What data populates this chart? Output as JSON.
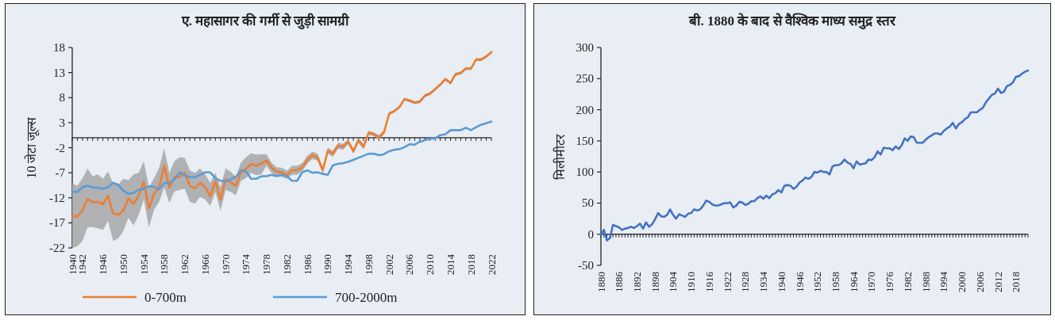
{
  "chart_data": [
    {
      "type": "line",
      "title": "ए. महासागर की गर्मी से जुड़ी सामग्री",
      "ylabel": "10 जेटा जूल्स",
      "categories": [
        "1940",
        null,
        "1942",
        null,
        null,
        null,
        "1946",
        null,
        null,
        null,
        "1950",
        null,
        null,
        null,
        "1954",
        null,
        null,
        null,
        "1958",
        null,
        null,
        null,
        "1962",
        null,
        null,
        null,
        "1966",
        null,
        null,
        null,
        "1970",
        null,
        null,
        null,
        "1974",
        null,
        null,
        null,
        "1978",
        null,
        null,
        null,
        "1982",
        null,
        null,
        null,
        "1986",
        null,
        null,
        null,
        "1990",
        null,
        null,
        null,
        "1994",
        null,
        null,
        null,
        "1998",
        null,
        null,
        null,
        "2002",
        null,
        null,
        null,
        "2006",
        null,
        null,
        null,
        "2010",
        null,
        null,
        null,
        "2014",
        null,
        null,
        null,
        "2018",
        null,
        null,
        null,
        "2022"
      ],
      "series": [
        {
          "name": "0-700m",
          "color": "#ed7d31",
          "values": [
            -15.7,
            -15.7,
            -14.5,
            -12.2,
            -12.9,
            -12.8,
            -13.3,
            -11.6,
            -15.1,
            -15.4,
            -14.5,
            -12.1,
            -13.2,
            -11.5,
            -8.8,
            -14.1,
            -11.2,
            -9.9,
            -5.6,
            -9.9,
            -7.8,
            -7.8,
            -7.0,
            -9.6,
            -10.1,
            -9.0,
            -9.9,
            -11.7,
            -8.7,
            -12.4,
            -8.3,
            -8.9,
            -9.6,
            -7.0,
            -6.2,
            -5.2,
            -5.6,
            -5.2,
            -4.5,
            -6.0,
            -6.8,
            -6.9,
            -7.4,
            -6.5,
            -6.5,
            -5.9,
            -4.4,
            -3.5,
            -3.9,
            -6.5,
            -2.6,
            -3.2,
            -1.6,
            -1.8,
            -0.8,
            -2.7,
            -0.5,
            -1.8,
            1.0,
            0.7,
            0.1,
            1.1,
            4.8,
            5.3,
            6.1,
            7.7,
            7.4,
            7.0,
            7.2,
            8.4,
            8.8,
            9.7,
            10.6,
            11.7,
            10.9,
            12.7,
            12.9,
            13.8,
            13.8,
            15.6,
            15.6,
            16.2,
            17.1
          ],
          "upper": [
            -9.1,
            -9.6,
            -8.1,
            -6.2,
            -7.7,
            -7.3,
            -8.2,
            -6.8,
            -9.1,
            -9.3,
            -8.2,
            -8.5,
            -7.3,
            -7.0,
            -4.7,
            -9.9,
            -8.1,
            -6.0,
            -2.1,
            -7.0,
            -4.7,
            -3.9,
            -4.0,
            -6.5,
            -7.0,
            -6.1,
            -7.3,
            -9.0,
            -7.0,
            -9.9,
            -6.1,
            -6.8,
            -7.8,
            -5.0,
            -3.9,
            -3.1,
            -3.4,
            -3.3,
            -3.3,
            -5.0,
            -5.9,
            -6.0,
            -6.6,
            -5.6,
            -5.6,
            -5.1,
            -3.6,
            -2.8,
            -3.2,
            -5.9,
            -2.0,
            -2.6,
            -1.0,
            -1.2,
            -0.3,
            -2.2,
            0.0,
            -1.3,
            1.4,
            1.1,
            0.5,
            1.5,
            5.1,
            5.6,
            6.4,
            8.0,
            7.7,
            7.3,
            7.5,
            8.7,
            9.1,
            10.0,
            10.9,
            12.0,
            11.2,
            13.0,
            13.2,
            14.1,
            14.1,
            15.9,
            15.9,
            16.5,
            17.4
          ],
          "lower": [
            -22.0,
            -21.7,
            -20.6,
            -17.9,
            -17.8,
            -18.1,
            -18.4,
            -16.6,
            -20.6,
            -20.1,
            -18.6,
            -16.0,
            -17.5,
            -15.4,
            -12.3,
            -17.9,
            -14.4,
            -12.8,
            -9.9,
            -13.0,
            -10.7,
            -10.4,
            -10.2,
            -12.8,
            -13.2,
            -11.8,
            -12.3,
            -13.6,
            -10.8,
            -14.6,
            -10.4,
            -10.8,
            -11.5,
            -8.6,
            -8.1,
            -7.0,
            -7.5,
            -7.3,
            -5.6,
            -7.0,
            -7.7,
            -7.8,
            -8.2,
            -7.4,
            -7.4,
            -6.7,
            -5.2,
            -4.2,
            -4.6,
            -7.1,
            -3.2,
            -3.8,
            -2.2,
            -2.4,
            -1.3,
            -3.2,
            -1.0,
            -2.3,
            0.6,
            0.3,
            -0.3,
            0.7,
            4.5,
            5.0,
            5.8,
            7.4,
            7.1,
            6.7,
            6.9,
            8.1,
            8.5,
            9.4,
            10.3,
            11.4,
            10.6,
            12.4,
            12.6,
            13.5,
            13.5,
            15.3,
            15.3,
            15.9,
            16.8
          ]
        },
        {
          "name": "700-2000m",
          "color": "#5b9bd5",
          "values": [
            -10.8,
            -10.8,
            -9.9,
            -9.6,
            -9.9,
            -10.0,
            -10.2,
            -9.9,
            -9.0,
            -9.4,
            -10.6,
            -11.2,
            -11.0,
            -10.4,
            -10.2,
            -9.7,
            -9.8,
            -10.3,
            -9.1,
            -9.0,
            -8.3,
            -6.9,
            -7.5,
            -7.9,
            -7.9,
            -7.4,
            -6.9,
            -6.9,
            -8.1,
            -8.6,
            -8.7,
            -8.3,
            -7.8,
            -6.5,
            -6.8,
            -8.2,
            -8.2,
            -7.7,
            -7.7,
            -7.4,
            -7.7,
            -7.4,
            -7.7,
            -8.6,
            -8.6,
            -6.9,
            -6.5,
            -7.0,
            -6.9,
            -7.2,
            -7.4,
            -5.5,
            -5.2,
            -5.1,
            -4.8,
            -4.4,
            -4.0,
            -3.6,
            -3.2,
            -3.2,
            -3.5,
            -3.3,
            -2.7,
            -2.4,
            -2.3,
            -1.9,
            -1.3,
            -1.4,
            -0.8,
            -0.5,
            -0.2,
            -0.1,
            0.5,
            0.7,
            1.5,
            1.5,
            1.5,
            2.0,
            1.5,
            2.1,
            2.6,
            2.9,
            3.2
          ]
        }
      ],
      "ylim": [
        -22,
        18
      ],
      "yticks": [
        -22,
        -17,
        -12,
        -7,
        -2,
        3,
        8,
        13,
        18
      ],
      "legend": "bottom"
    },
    {
      "type": "line",
      "title": "बी. 1880 के बाद से वैश्विक माध्य समुद्र स्तर",
      "ylabel": "मिलीमीटर",
      "categories": [
        "1880",
        null,
        null,
        null,
        null,
        null,
        "1886",
        null,
        null,
        null,
        null,
        null,
        "1892",
        null,
        null,
        null,
        null,
        null,
        "1898",
        null,
        null,
        null,
        null,
        null,
        "1904",
        null,
        null,
        null,
        null,
        null,
        "1910",
        null,
        null,
        null,
        null,
        null,
        "1916",
        null,
        null,
        null,
        null,
        null,
        "1922",
        null,
        null,
        null,
        null,
        null,
        "1928",
        null,
        null,
        null,
        null,
        null,
        "1934",
        null,
        null,
        null,
        null,
        null,
        "1940",
        null,
        null,
        null,
        null,
        null,
        "1946",
        null,
        null,
        null,
        null,
        null,
        "1952",
        null,
        null,
        null,
        null,
        null,
        "1958",
        null,
        null,
        null,
        null,
        null,
        "1964",
        null,
        null,
        null,
        null,
        null,
        "1970",
        null,
        null,
        null,
        null,
        null,
        "1976",
        null,
        null,
        null,
        null,
        null,
        "1982",
        null,
        null,
        null,
        null,
        null,
        "1988",
        null,
        null,
        null,
        null,
        null,
        "1994",
        null,
        null,
        null,
        null,
        null,
        "2000",
        null,
        null,
        null,
        null,
        null,
        "2006",
        null,
        null,
        null,
        null,
        null,
        "2012",
        null,
        null,
        null,
        null,
        null,
        "2018",
        null,
        null,
        null,
        null
      ],
      "series": [
        {
          "color": "#4472c4",
          "values": [
            -1,
            7,
            -10,
            -6,
            15,
            13,
            11,
            7,
            9,
            10,
            12,
            10,
            13,
            17,
            9,
            19,
            12,
            16,
            24,
            34,
            29,
            28,
            31,
            40,
            31,
            25,
            32,
            30,
            28,
            33,
            34,
            40,
            38,
            40,
            46,
            54,
            52,
            48,
            46,
            46,
            48,
            50,
            50,
            51,
            43,
            46,
            52,
            51,
            47,
            49,
            53,
            53,
            58,
            61,
            57,
            62,
            58,
            64,
            66,
            71,
            67,
            78,
            79,
            78,
            73,
            76,
            83,
            86,
            91,
            89,
            92,
            100,
            99,
            102,
            100,
            100,
            96,
            109,
            111,
            111,
            114,
            120,
            115,
            113,
            106,
            117,
            112,
            113,
            114,
            120,
            119,
            124,
            133,
            128,
            139,
            138,
            138,
            135,
            141,
            137,
            143,
            154,
            150,
            157,
            156,
            147,
            147,
            147,
            152,
            156,
            159,
            162,
            162,
            160,
            166,
            170,
            173,
            179,
            170,
            177,
            180,
            185,
            188,
            196,
            196,
            196,
            200,
            203,
            212,
            218,
            224,
            226,
            234,
            227,
            229,
            238,
            240,
            244,
            253,
            254,
            258,
            261,
            263
          ]
        }
      ],
      "ylim": [
        -50,
        300
      ],
      "yticks": [
        -50,
        0,
        50,
        100,
        150,
        200,
        250,
        300
      ]
    }
  ]
}
